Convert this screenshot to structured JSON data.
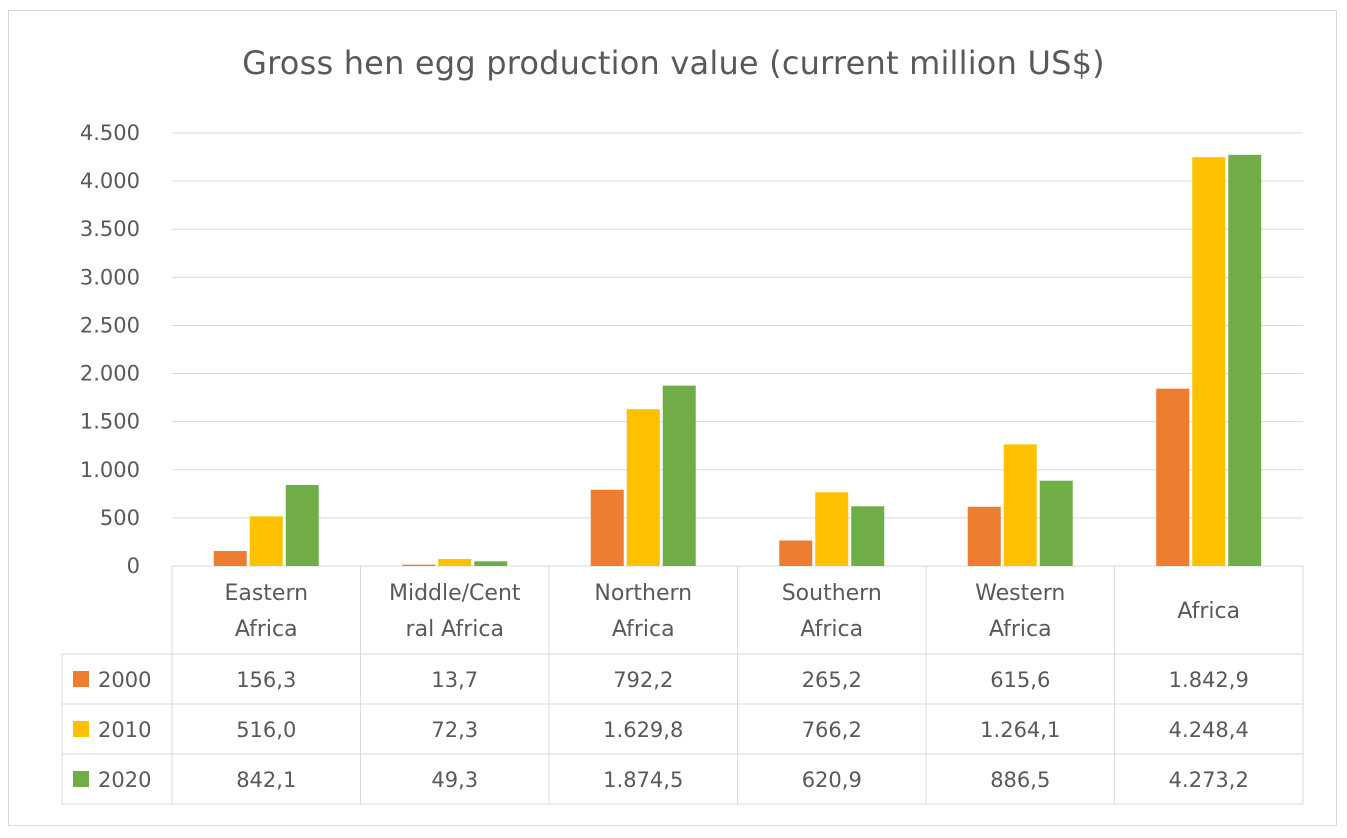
{
  "chart_data": {
    "type": "bar",
    "title": "Gross hen egg production value (current million US$)",
    "categories": [
      [
        "Eastern",
        "Africa"
      ],
      [
        "Middle/Cent",
        "ral Africa"
      ],
      [
        "Northern",
        "Africa"
      ],
      [
        "Southern",
        "Africa"
      ],
      [
        "Western",
        "Africa"
      ],
      [
        "Africa"
      ]
    ],
    "series": [
      {
        "name": "2000",
        "color": "#ED7D31",
        "values": [
          156.3,
          13.7,
          792.2,
          265.2,
          615.6,
          1842.9
        ],
        "labels": [
          "156,3",
          "13,7",
          "792,2",
          "265,2",
          "615,6",
          "1.842,9"
        ]
      },
      {
        "name": "2010",
        "color": "#FFC000",
        "values": [
          516.0,
          72.3,
          1629.8,
          766.2,
          1264.1,
          4248.4
        ],
        "labels": [
          "516,0",
          "72,3",
          "1.629,8",
          "766,2",
          "1.264,1",
          "4.248,4"
        ]
      },
      {
        "name": "2020",
        "color": "#70AD47",
        "values": [
          842.1,
          49.3,
          1874.5,
          620.9,
          886.5,
          4273.2
        ],
        "labels": [
          "842,1",
          "49,3",
          "1.874,5",
          "620,9",
          "886,5",
          "4.273,2"
        ]
      }
    ],
    "yticks": [
      0,
      500,
      1000,
      1500,
      2000,
      2500,
      3000,
      3500,
      4000,
      4500
    ],
    "ytick_labels": [
      "0",
      "500",
      "1.000",
      "1.500",
      "2.000",
      "2.500",
      "3.000",
      "3.500",
      "4.000",
      "4.500"
    ],
    "ylim": [
      0,
      4500
    ],
    "grid": true,
    "legend": "data-table"
  }
}
